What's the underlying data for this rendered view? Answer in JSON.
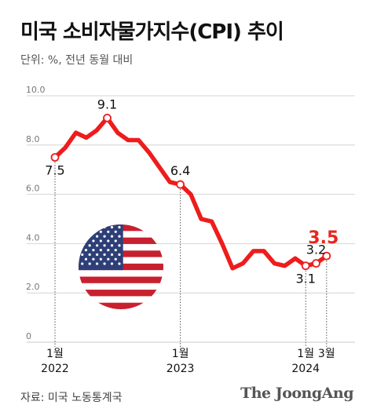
{
  "header": {
    "title": "미국 소비자물가지수(CPI) 추이",
    "unit": "단위: %, 전년 동월 대비"
  },
  "footer": {
    "source": "자료: 미국 노동통계국",
    "brand": "The JoongAng"
  },
  "colors": {
    "line": "#ee1c1c",
    "highlight": "#e8261c",
    "grid": "#d4d4d4",
    "text": "#111111",
    "tick": "#777777",
    "flag_red": "#c8202f",
    "flag_blue": "#2e3f78"
  },
  "chart_data": {
    "type": "line",
    "title": "미국 소비자물가지수(CPI) 추이",
    "ylim": [
      0,
      10
    ],
    "y_ticks": [
      "10.0",
      "8.0",
      "6.0",
      "4.0",
      "2.0",
      "0"
    ],
    "grid": true,
    "x_axis": [
      {
        "month": "1월",
        "year": "2022",
        "index": 0
      },
      {
        "month": "1월",
        "year": "2023",
        "index": 12
      },
      {
        "month": "1월",
        "year": "2024",
        "index": 24
      },
      {
        "month": "3월",
        "year": "",
        "index": 26
      }
    ],
    "series": [
      {
        "x": [
          "2022-01",
          "2022-02",
          "2022-03",
          "2022-04",
          "2022-05",
          "2022-06",
          "2022-07",
          "2022-08",
          "2022-09",
          "2022-10",
          "2022-11",
          "2022-12",
          "2023-01",
          "2023-02",
          "2023-03",
          "2023-04",
          "2023-05",
          "2023-06",
          "2023-07",
          "2023-08",
          "2023-09",
          "2023-10",
          "2023-11",
          "2023-12",
          "2024-01",
          "2024-02",
          "2024-03"
        ],
        "values": [
          7.5,
          7.9,
          8.5,
          8.3,
          8.6,
          9.1,
          8.5,
          8.2,
          8.2,
          7.7,
          7.1,
          6.5,
          6.4,
          6.0,
          5.0,
          4.9,
          4.0,
          3.0,
          3.2,
          3.7,
          3.7,
          3.2,
          3.1,
          3.4,
          3.1,
          3.2,
          3.5
        ]
      }
    ],
    "annotations": [
      {
        "index": 0,
        "label": "7.5",
        "pos": "below"
      },
      {
        "index": 5,
        "label": "9.1",
        "pos": "above"
      },
      {
        "index": 12,
        "label": "6.4",
        "pos": "above"
      },
      {
        "index": 24,
        "label": "3.1",
        "pos": "below"
      },
      {
        "index": 25,
        "label": "3.2",
        "pos": "above"
      },
      {
        "index": 26,
        "label": "3.5",
        "pos": "above",
        "highlight": true
      }
    ]
  }
}
